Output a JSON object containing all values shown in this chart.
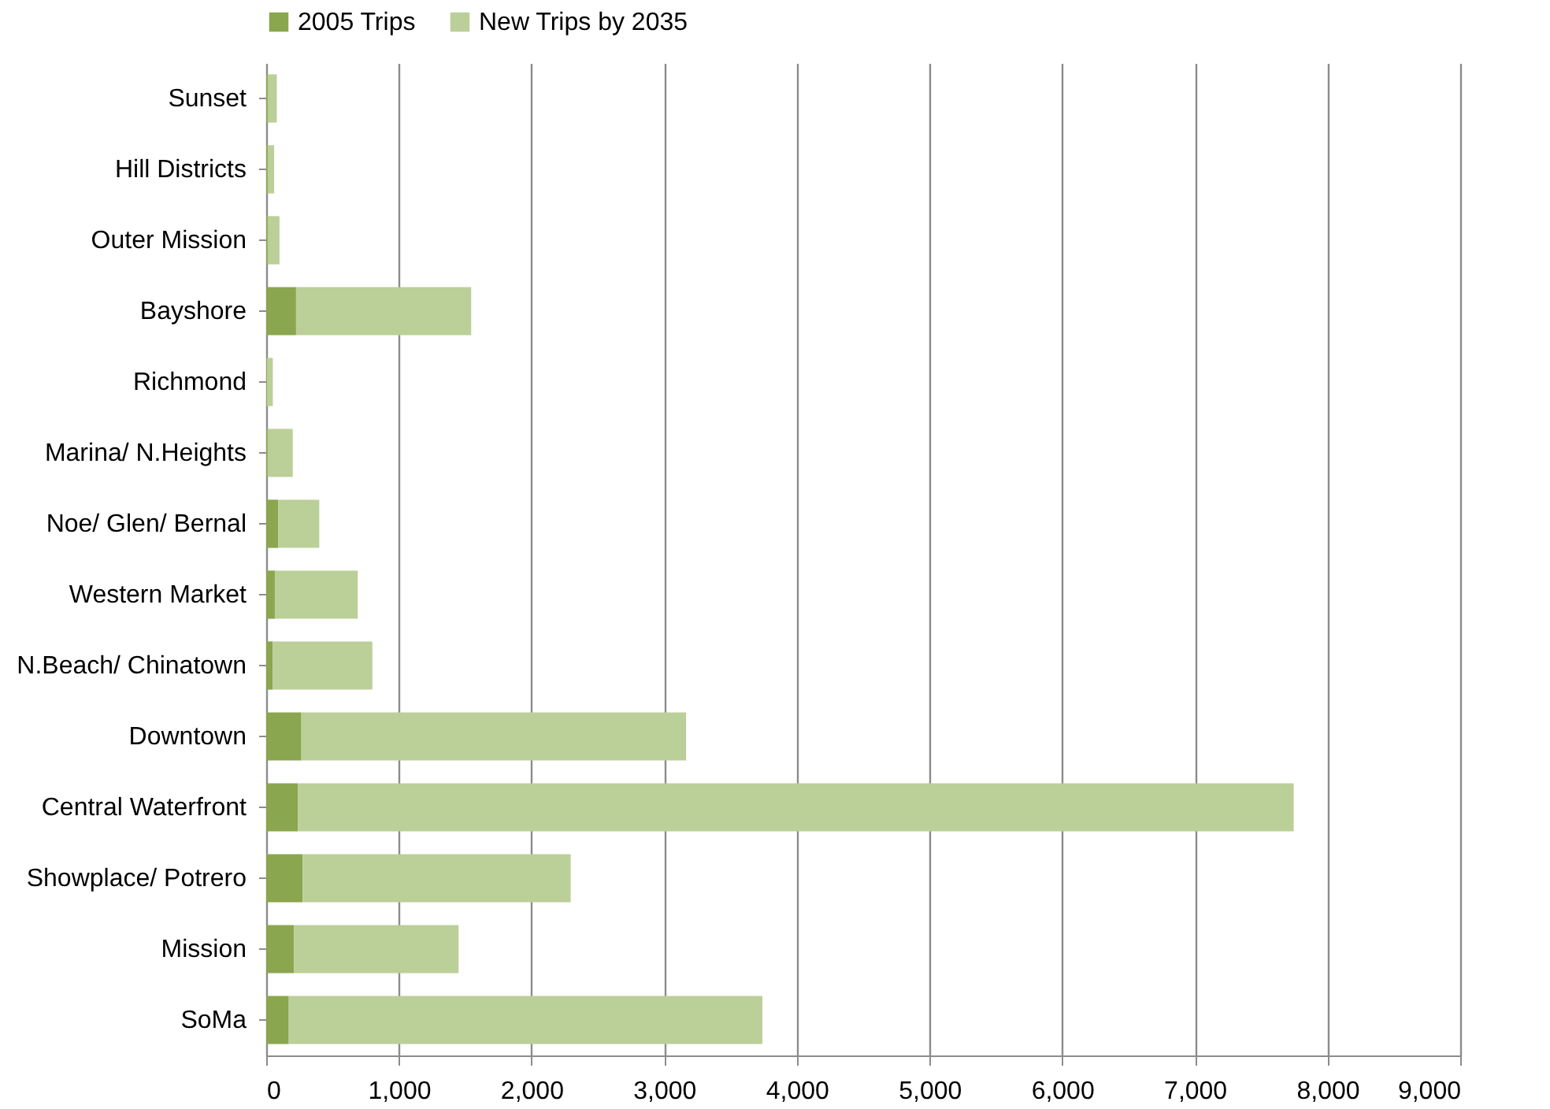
{
  "chart_data": {
    "type": "bar",
    "orientation": "horizontal",
    "stacked": true,
    "categories": [
      "Sunset",
      "Hill Districts",
      "Outer Mission",
      "Bayshore",
      "Richmond",
      "Marina/ N.Heights",
      "Noe/ Glen/ Bernal",
      "Western Market",
      "N.Beach/ Chinatown",
      "Downtown",
      "Central Waterfront",
      "Showplace/ Potrero",
      "Mission",
      "SoMa"
    ],
    "series": [
      {
        "name": "2005 Trips",
        "color": "#8aa64e",
        "values": [
          10,
          10,
          10,
          225,
          5,
          10,
          90,
          65,
          50,
          265,
          240,
          275,
          210,
          170
        ]
      },
      {
        "name": "New Trips by 2035",
        "color": "#bbcf98",
        "values": [
          70,
          50,
          90,
          1320,
          45,
          190,
          310,
          625,
          750,
          2900,
          7505,
          2020,
          1240,
          3570
        ]
      }
    ],
    "xlim": [
      0,
      9000
    ],
    "xticks": [
      0,
      {
        "value": 1000,
        "label": "1,000"
      },
      {
        "value": 2000,
        "label": "2,000"
      },
      {
        "value": 3000,
        "label": "3,000"
      },
      {
        "value": 4000,
        "label": "4,000"
      },
      {
        "value": 5000,
        "label": "5,000"
      },
      {
        "value": 6000,
        "label": "6,000"
      },
      {
        "value": 7000,
        "label": "7,000"
      },
      {
        "value": 8000,
        "label": "8,000"
      },
      {
        "value": 9000,
        "label": "9,000"
      }
    ],
    "grid": "x",
    "legend": "top"
  }
}
